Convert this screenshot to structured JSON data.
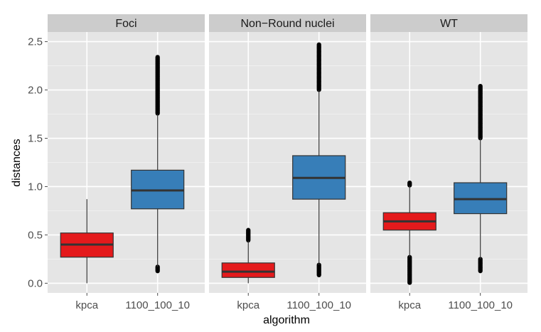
{
  "chart_data": {
    "type": "boxplot",
    "xlabel": "algorithm",
    "ylabel": "distances",
    "ylim": [
      -0.1,
      2.6
    ],
    "yticks": [
      0.0,
      0.5,
      1.0,
      1.5,
      2.0,
      2.5
    ],
    "ytick_labels": [
      "0.0",
      "0.5",
      "1.0",
      "1.5",
      "2.0",
      "2.5"
    ],
    "categories": [
      "kpca",
      "1100_100_10"
    ],
    "colors": {
      "kpca": "#e41a1c",
      "1100_100_10": "#377eb8"
    },
    "grid": true,
    "facets": [
      {
        "name": "Foci",
        "boxes": [
          {
            "category": "kpca",
            "whisker_low": 0.0,
            "q1": 0.27,
            "median": 0.4,
            "q3": 0.52,
            "whisker_high": 0.87,
            "outliers_low": [],
            "outliers_high": []
          },
          {
            "category": "1100_100_10",
            "whisker_low": 0.17,
            "q1": 0.77,
            "median": 0.96,
            "q3": 1.17,
            "whisker_high": 1.75,
            "outliers_low": [
              0.12,
              0.17
            ],
            "outliers_high": [
              1.75,
              2.34
            ]
          }
        ]
      },
      {
        "name": "Non−Round nuclei",
        "boxes": [
          {
            "category": "kpca",
            "whisker_low": 0.0,
            "q1": 0.06,
            "median": 0.12,
            "q3": 0.21,
            "whisker_high": 0.44,
            "outliers_low": [],
            "outliers_high": [
              0.44,
              0.55
            ]
          },
          {
            "category": "1100_100_10",
            "whisker_low": 0.19,
            "q1": 0.87,
            "median": 1.09,
            "q3": 1.32,
            "whisker_high": 2.0,
            "outliers_low": [
              0.08,
              0.19
            ],
            "outliers_high": [
              2.0,
              2.47
            ]
          }
        ]
      },
      {
        "name": "WT",
        "boxes": [
          {
            "category": "kpca",
            "whisker_low": 0.27,
            "q1": 0.55,
            "median": 0.64,
            "q3": 0.73,
            "whisker_high": 1.01,
            "outliers_low": [
              0.0,
              0.27
            ],
            "outliers_high": [
              1.01,
              1.04
            ]
          },
          {
            "category": "1100_100_10",
            "whisker_low": 0.25,
            "q1": 0.72,
            "median": 0.87,
            "q3": 1.04,
            "whisker_high": 1.5,
            "outliers_low": [
              0.12,
              0.25
            ],
            "outliers_high": [
              1.5,
              2.04
            ]
          }
        ]
      }
    ]
  }
}
